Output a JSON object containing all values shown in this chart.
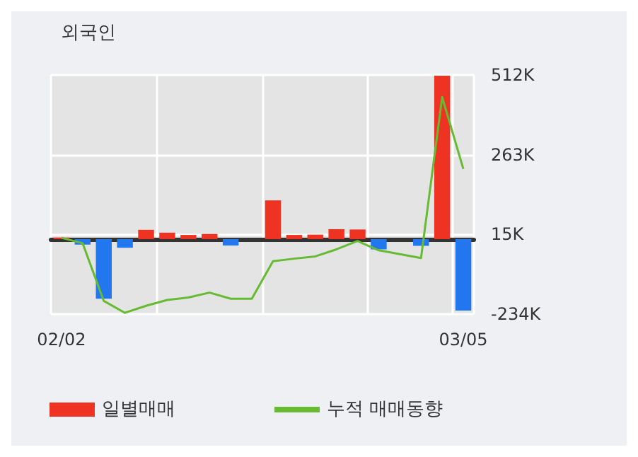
{
  "chart_data": {
    "type": "bar",
    "title": "외국인",
    "categories": [
      "02/02",
      null,
      null,
      null,
      null,
      null,
      null,
      null,
      null,
      null,
      null,
      null,
      null,
      null,
      null,
      null,
      null,
      null,
      null,
      "03/05"
    ],
    "series": [
      {
        "name": "일별매매",
        "values": [
          5000,
          -17000,
          -186000,
          -27000,
          29000,
          20000,
          13000,
          16000,
          -20000,
          0,
          121000,
          13000,
          14000,
          31000,
          30000,
          -32000,
          0,
          -21000,
          510000,
          -223000
        ],
        "colors": [
          "#ee3322",
          "#2277ee",
          "#2277ee",
          "#2277ee",
          "#ee3322",
          "#ee3322",
          "#ee3322",
          "#ee3322",
          "#2277ee",
          "#ee3322",
          "#ee3322",
          "#ee3322",
          "#ee3322",
          "#ee3322",
          "#ee3322",
          "#2277ee",
          "#ee3322",
          "#2277ee",
          "#ee3322",
          "#2277ee"
        ]
      },
      {
        "name": "누적 매매동향",
        "type": "line",
        "color": "#66bb33",
        "values": [
          4000,
          -13000,
          -193000,
          -230000,
          -208000,
          -190000,
          -182000,
          -167000,
          -186000,
          -186000,
          -69000,
          -61000,
          -54000,
          -32000,
          -6000,
          -35000,
          -47000,
          -59000,
          443000,
          219000
        ]
      }
    ],
    "ylim": [
      -234000,
      512000
    ],
    "yticks": [
      {
        "value": -234000,
        "label": "-234K"
      },
      {
        "value": 15000,
        "label": "15K"
      },
      {
        "value": 263000,
        "label": "263K"
      },
      {
        "value": 512000,
        "label": "512K"
      }
    ],
    "grid": true,
    "legend": "bottom",
    "marker": "none"
  }
}
